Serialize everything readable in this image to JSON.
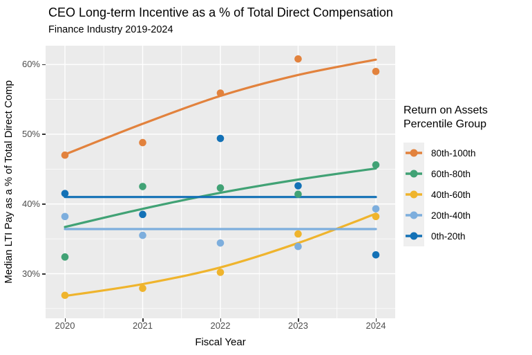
{
  "chart_data": {
    "type": "scatter",
    "title": "CEO Long-term Incentive as a % of Total Direct Compensation",
    "subtitle": "Finance Industry 2019-2024",
    "xlabel": "Fiscal Year",
    "ylabel": "Median LTI Pay as a % of Total Direct Comp",
    "x": [
      2020,
      2021,
      2022,
      2023,
      2024
    ],
    "x_tick_labels": [
      "2020",
      "2021",
      "2022",
      "2023",
      "2024"
    ],
    "y_ticks": [
      {
        "value": 60,
        "label": "60%"
      },
      {
        "value": 50,
        "label": "50%"
      },
      {
        "value": 40,
        "label": "40%"
      },
      {
        "value": 30,
        "label": "30%"
      }
    ],
    "y_minor_gridlines": [
      55,
      45,
      35,
      25
    ],
    "ylim": [
      23.6,
      62.7
    ],
    "grid": true,
    "legend_position": "right",
    "legend_title_line1": "Return on Assets",
    "legend_title_line2": "Percentile Group",
    "series": [
      {
        "name": "80th-100th",
        "color": "#E2823D",
        "points": [
          47.0,
          48.8,
          55.9,
          60.8,
          59.0
        ],
        "trend": [
          47.1,
          51.5,
          55.5,
          58.5,
          60.7
        ]
      },
      {
        "name": "60th-80th",
        "color": "#41A275",
        "points": [
          32.4,
          42.5,
          42.3,
          41.4,
          45.6
        ],
        "trend": [
          36.7,
          39.3,
          41.6,
          43.5,
          45.1
        ]
      },
      {
        "name": "40th-60th",
        "color": "#EFB42D",
        "points": [
          26.9,
          27.9,
          30.2,
          35.7,
          38.2
        ],
        "trend": [
          26.8,
          28.5,
          30.9,
          34.4,
          38.6
        ]
      },
      {
        "name": "20th-40th",
        "color": "#7DAEDD",
        "points": [
          38.2,
          35.5,
          34.4,
          33.9,
          39.3
        ],
        "trend": [
          36.4,
          36.4,
          36.4,
          36.4,
          36.4
        ]
      },
      {
        "name": "0th-20th",
        "color": "#1371B6",
        "points": [
          41.5,
          38.5,
          49.4,
          42.6,
          32.7
        ],
        "trend": [
          41.0,
          41.0,
          41.0,
          41.0,
          41.0
        ]
      }
    ],
    "panel_background": "#EBEBEB",
    "gridline_color": "#FFFFFF",
    "tick_text_color": "#4D4D4D"
  }
}
